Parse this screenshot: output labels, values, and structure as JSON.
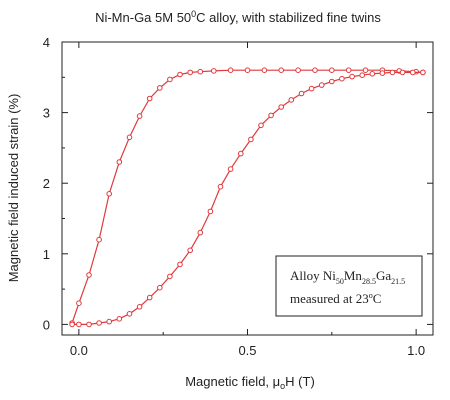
{
  "chart_data": {
    "type": "line",
    "title_main": "Ni-Mn-Ga 5M 50",
    "title_sup": "0",
    "title_rest": "C alloy, with stabilized fine twins",
    "xlabel_main": "Magnetic field, μ",
    "xlabel_sub": "o",
    "xlabel_rest": "H (T)",
    "ylabel": "Magnetic field induced strain (%)",
    "xlim": [
      -0.05,
      1.05
    ],
    "ylim": [
      -0.15,
      4.0
    ],
    "x_ticks": [
      0.0,
      0.5,
      1.0
    ],
    "x_tick_labels": [
      "0.0",
      "0.5",
      "1.0"
    ],
    "y_ticks": [
      0,
      1,
      2,
      3,
      4
    ],
    "y_tick_labels": [
      "0",
      "1",
      "2",
      "3",
      "4"
    ],
    "grid": false,
    "legend": {
      "line1_prefix": "Alloy Ni",
      "ni_sub": "50",
      "mn": "Mn",
      "mn_sub": "28.5",
      "ga": "Ga",
      "ga_sub": "21.5",
      "line2_prefix": "measured at 23",
      "line2_sup": "o",
      "line2_rest": "C",
      "placement": "bottom-right"
    },
    "series_color": "#e0393c",
    "series": [
      {
        "x": [
          -0.02,
          0.0,
          0.03,
          0.06,
          0.09,
          0.12,
          0.15,
          0.18,
          0.21,
          0.24,
          0.27,
          0.3,
          0.33,
          0.36,
          0.4,
          0.45,
          0.5,
          0.55,
          0.6,
          0.65,
          0.7,
          0.75,
          0.8,
          0.85,
          0.9,
          0.95,
          1.0,
          1.02
        ],
        "y": [
          0.02,
          0.3,
          0.7,
          1.2,
          1.85,
          2.3,
          2.65,
          2.95,
          3.2,
          3.35,
          3.47,
          3.54,
          3.57,
          3.58,
          3.59,
          3.6,
          3.6,
          3.6,
          3.6,
          3.6,
          3.6,
          3.6,
          3.6,
          3.6,
          3.6,
          3.59,
          3.58,
          3.57
        ]
      },
      {
        "x": [
          -0.02,
          0.0,
          0.03,
          0.06,
          0.09,
          0.12,
          0.15,
          0.18,
          0.21,
          0.24,
          0.27,
          0.3,
          0.33,
          0.36,
          0.39,
          0.42,
          0.45,
          0.48,
          0.51,
          0.54,
          0.57,
          0.6,
          0.63,
          0.66,
          0.69,
          0.72,
          0.75,
          0.78,
          0.81,
          0.84,
          0.87,
          0.9,
          0.93,
          0.96,
          0.99,
          1.02
        ],
        "y": [
          0.0,
          0.0,
          0.0,
          0.02,
          0.04,
          0.08,
          0.15,
          0.25,
          0.38,
          0.52,
          0.68,
          0.85,
          1.05,
          1.3,
          1.6,
          1.95,
          2.2,
          2.42,
          2.62,
          2.82,
          2.96,
          3.08,
          3.18,
          3.27,
          3.34,
          3.39,
          3.44,
          3.48,
          3.51,
          3.53,
          3.55,
          3.56,
          3.57,
          3.57,
          3.57,
          3.57
        ]
      }
    ]
  }
}
